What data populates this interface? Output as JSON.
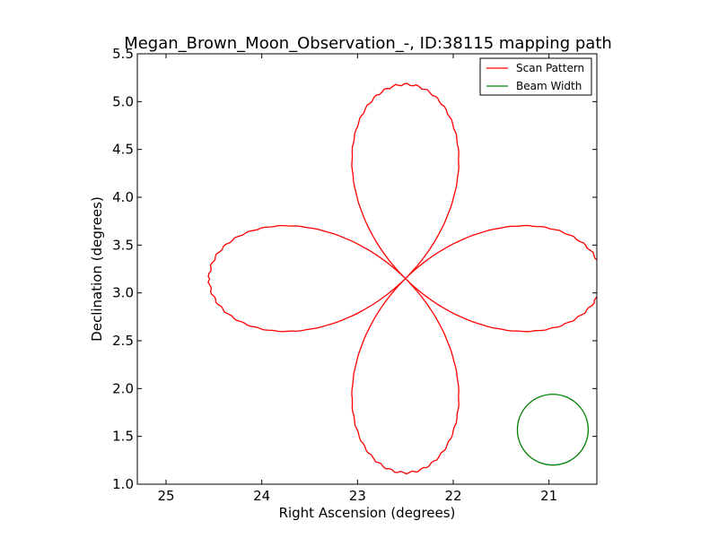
{
  "chart_data": {
    "type": "line",
    "title": "Megan_Brown_Moon_Observation_-, ID:38115 mapping path",
    "xlabel": "Right Ascension (degrees)",
    "ylabel": "Declination (degrees)",
    "xlim": [
      25.3,
      20.5
    ],
    "ylim": [
      1.0,
      5.5
    ],
    "x_inverted": true,
    "grid": false,
    "legend_position": "top-right",
    "x_ticks": [
      25,
      24,
      23,
      22,
      21
    ],
    "x_tick_labels": [
      "25",
      "24",
      "23",
      "22",
      "21"
    ],
    "y_ticks": [
      1.0,
      1.5,
      2.0,
      2.5,
      3.0,
      3.5,
      4.0,
      4.5,
      5.0,
      5.5
    ],
    "y_tick_labels": [
      "1.0",
      "1.5",
      "2.0",
      "2.5",
      "3.0",
      "3.5",
      "4.0",
      "4.5",
      "5.0",
      "5.5"
    ],
    "series": [
      {
        "name": "Scan Pattern",
        "color": "#ff0000",
        "pattern": "four-petal rose",
        "center": [
          22.5,
          3.15
        ],
        "petal_length_x": 2.05,
        "petal_length_y": 2.03,
        "start_ra": 24.54,
        "start_dec": 3.14
      },
      {
        "name": "Beam Width",
        "color": "#008000",
        "pattern": "circle",
        "center": [
          20.96,
          1.57
        ],
        "radius_dec": 0.37
      }
    ]
  }
}
